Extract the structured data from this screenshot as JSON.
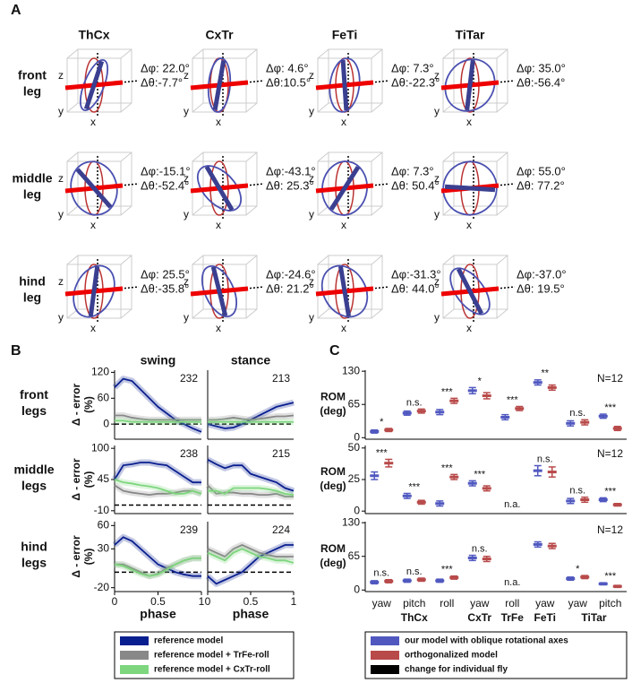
{
  "panel_letters": [
    "A",
    "B",
    "C"
  ],
  "panel_a": {
    "columns": [
      "ThCx",
      "CxTr",
      "FeTi",
      "TiTar"
    ],
    "rows": [
      [
        "front",
        "leg"
      ],
      [
        "middle",
        "leg"
      ],
      [
        "hind",
        "leg"
      ]
    ],
    "axis_labels": [
      "z",
      "y",
      "x"
    ],
    "cells": [
      [
        {
          "dphi": 22.0,
          "dphi_label": "Δφ: 22.0°",
          "dtheta": -7.7,
          "dtheta_label": "Δθ:-7.7°"
        },
        {
          "dphi": 4.6,
          "dphi_label": "Δφ: 4.6°",
          "dtheta": 10.5,
          "dtheta_label": "Δθ:10.5°"
        },
        {
          "dphi": 7.3,
          "dphi_label": "Δφ: 7.3°",
          "dtheta": -22.3,
          "dtheta_label": "Δθ:-22.3°"
        },
        {
          "dphi": 35.0,
          "dphi_label": "Δφ: 35.0°",
          "dtheta": -56.4,
          "dtheta_label": "Δθ:-56.4°"
        }
      ],
      [
        {
          "dphi": -15.1,
          "dphi_label": "Δφ:-15.1°",
          "dtheta": -52.4,
          "dtheta_label": "Δθ:-52.4°"
        },
        {
          "dphi": -43.1,
          "dphi_label": "Δφ:-43.1°",
          "dtheta": 25.3,
          "dtheta_label": "Δθ: 25.3°"
        },
        {
          "dphi": 7.3,
          "dphi_label": "Δφ: 7.3°",
          "dtheta": 50.4,
          "dtheta_label": "Δθ: 50.4°"
        },
        {
          "dphi": 55.0,
          "dphi_label": "Δφ: 55.0°",
          "dtheta": 77.2,
          "dtheta_label": "Δθ: 77.2°"
        }
      ],
      [
        {
          "dphi": 25.5,
          "dphi_label": "Δφ: 25.5°",
          "dtheta": -35.8,
          "dtheta_label": "Δθ:-35.8°"
        },
        {
          "dphi": -24.6,
          "dphi_label": "Δφ:-24.6°",
          "dtheta": 21.2,
          "dtheta_label": "Δθ: 21.2°"
        },
        {
          "dphi": -31.3,
          "dphi_label": "Δφ:-31.3°",
          "dtheta": 44.0,
          "dtheta_label": "Δθ: 44.0°"
        },
        {
          "dphi": -37.0,
          "dphi_label": "Δφ:-37.0°",
          "dtheta": 19.5,
          "dtheta_label": "Δθ: 19.5°"
        }
      ]
    ]
  },
  "chart_data": [
    {
      "type": "line",
      "title": "swing",
      "row_label": [
        "front",
        "legs"
      ],
      "y_label": [
        "Δ - error",
        "(%)"
      ],
      "annotation": "232",
      "x": [
        0,
        0.1,
        0.2,
        0.3,
        0.4,
        0.5,
        0.6,
        0.7,
        0.8,
        0.9,
        1
      ],
      "xlim": [
        0,
        1
      ],
      "ylim": [
        -35,
        125
      ],
      "yticks": [
        0,
        60,
        120
      ],
      "reference_line": 0,
      "series": [
        {
          "name": "reference model",
          "color": "#0a1f8f",
          "values": [
            85,
            105,
            100,
            80,
            60,
            40,
            25,
            10,
            0,
            -10,
            -18
          ]
        },
        {
          "name": "reference model + TrFe-roll",
          "color": "#888888",
          "values": [
            20,
            20,
            15,
            12,
            10,
            10,
            10,
            10,
            10,
            10,
            10
          ]
        },
        {
          "name": "reference model + CxTr-roll",
          "color": "#7ed67e",
          "values": [
            8,
            8,
            5,
            5,
            5,
            5,
            5,
            5,
            5,
            5,
            5
          ]
        }
      ]
    },
    {
      "type": "line",
      "title": "stance",
      "annotation": "213",
      "x": [
        0,
        0.1,
        0.2,
        0.3,
        0.4,
        0.5,
        0.6,
        0.7,
        0.8,
        0.9,
        1
      ],
      "xlim": [
        0,
        1
      ],
      "ylim": [
        -35,
        125
      ],
      "reference_line": 0,
      "series": [
        {
          "name": "reference model",
          "color": "#0a1f8f",
          "values": [
            0,
            -5,
            -10,
            -8,
            0,
            10,
            20,
            30,
            40,
            45,
            50
          ]
        },
        {
          "name": "reference model + TrFe-roll",
          "color": "#888888",
          "values": [
            10,
            10,
            12,
            15,
            12,
            10,
            12,
            15,
            18,
            18,
            20
          ]
        },
        {
          "name": "reference model + CxTr-roll",
          "color": "#7ed67e",
          "values": [
            5,
            5,
            5,
            5,
            5,
            5,
            5,
            5,
            5,
            5,
            5
          ]
        }
      ]
    },
    {
      "type": "line",
      "row_label": [
        "middle",
        "legs"
      ],
      "y_label": [
        "Δ - error",
        "(%)"
      ],
      "annotation": "238",
      "x": [
        0,
        0.1,
        0.2,
        0.3,
        0.4,
        0.5,
        0.6,
        0.7,
        0.8,
        0.9,
        1
      ],
      "xlim": [
        0,
        1
      ],
      "ylim": [
        -15,
        105
      ],
      "yticks": [
        -10,
        45,
        100
      ],
      "reference_line": 0,
      "series": [
        {
          "name": "reference model",
          "color": "#0a1f8f",
          "values": [
            45,
            70,
            72,
            75,
            75,
            72,
            70,
            60,
            50,
            40,
            40
          ]
        },
        {
          "name": "reference model + TrFe-roll",
          "color": "#888888",
          "values": [
            35,
            25,
            22,
            20,
            18,
            20,
            20,
            22,
            25,
            25,
            20
          ]
        },
        {
          "name": "reference model + CxTr-roll",
          "color": "#7ed67e",
          "values": [
            45,
            40,
            38,
            35,
            33,
            30,
            25,
            20,
            20,
            25,
            20
          ]
        }
      ]
    },
    {
      "type": "line",
      "annotation": "215",
      "x": [
        0,
        0.1,
        0.2,
        0.3,
        0.4,
        0.5,
        0.6,
        0.7,
        0.8,
        0.9,
        1
      ],
      "xlim": [
        0,
        1
      ],
      "ylim": [
        -15,
        105
      ],
      "reference_line": 0,
      "series": [
        {
          "name": "reference model",
          "color": "#0a1f8f",
          "values": [
            80,
            72,
            65,
            70,
            70,
            55,
            50,
            45,
            40,
            30,
            25
          ]
        },
        {
          "name": "reference model + TrFe-roll",
          "color": "#888888",
          "values": [
            35,
            20,
            22,
            22,
            20,
            20,
            18,
            18,
            20,
            15,
            15
          ]
        },
        {
          "name": "reference model + CxTr-roll",
          "color": "#7ed67e",
          "values": [
            25,
            25,
            20,
            30,
            30,
            30,
            30,
            28,
            25,
            20,
            18
          ]
        }
      ]
    },
    {
      "type": "line",
      "row_label": [
        "hind",
        "legs"
      ],
      "y_label": [
        "Δ - error",
        "(%)"
      ],
      "x_label": "phase",
      "annotation": "239",
      "x": [
        0,
        0.1,
        0.2,
        0.3,
        0.4,
        0.5,
        0.6,
        0.7,
        0.8,
        0.9,
        1
      ],
      "xlim": [
        0,
        1
      ],
      "xticks": [
        0,
        0.5,
        1
      ],
      "ylim": [
        -25,
        65
      ],
      "yticks": [
        -20,
        30,
        60
      ],
      "reference_line": 0,
      "series": [
        {
          "name": "reference model",
          "color": "#0a1f8f",
          "values": [
            35,
            45,
            40,
            30,
            20,
            10,
            5,
            0,
            -3,
            -5,
            -5
          ]
        },
        {
          "name": "reference model + TrFe-roll",
          "color": "#888888",
          "values": [
            10,
            10,
            5,
            0,
            -5,
            -2,
            5,
            10,
            15,
            18,
            18
          ]
        },
        {
          "name": "reference model + CxTr-roll",
          "color": "#7ed67e",
          "values": [
            10,
            8,
            3,
            -2,
            -5,
            -3,
            3,
            10,
            15,
            18,
            18
          ]
        }
      ]
    },
    {
      "type": "line",
      "x_label": "phase",
      "annotation": "224",
      "x": [
        0,
        0.1,
        0.2,
        0.3,
        0.4,
        0.5,
        0.6,
        0.7,
        0.8,
        0.9,
        1
      ],
      "xlim": [
        0,
        1
      ],
      "xticks": [
        0,
        0.5,
        1
      ],
      "ylim": [
        -25,
        65
      ],
      "reference_line": 0,
      "series": [
        {
          "name": "reference model",
          "color": "#0a1f8f",
          "values": [
            -5,
            -15,
            -10,
            -5,
            0,
            10,
            20,
            25,
            30,
            35,
            35
          ]
        },
        {
          "name": "reference model + TrFe-roll",
          "color": "#888888",
          "values": [
            30,
            25,
            20,
            30,
            35,
            30,
            25,
            22,
            20,
            20,
            20
          ]
        },
        {
          "name": "reference model + CxTr-roll",
          "color": "#7ed67e",
          "values": [
            25,
            20,
            15,
            25,
            30,
            25,
            20,
            18,
            15,
            15,
            12
          ]
        }
      ]
    },
    {
      "type": "errorbar",
      "y_label": [
        "ROM",
        "(deg)"
      ],
      "annotation": "N=12",
      "ylim": [
        -3,
        132
      ],
      "yticks": [
        0,
        65,
        130
      ],
      "significance": [
        "*",
        "n.s.",
        "***",
        "*",
        "***",
        "**",
        "n.s.",
        "***"
      ],
      "individual_label": "change for individual fly",
      "individual_color": "#000000",
      "series": [
        {
          "name": "our model with oblique rotational axes",
          "color": "#5058c0",
          "values": [
            12,
            48,
            50,
            92,
            40,
            108,
            28,
            42
          ],
          "errors": [
            3,
            4,
            5,
            6,
            5,
            5,
            5,
            4
          ]
        },
        {
          "name": "orthogonalized model",
          "color": "#b84a4a",
          "values": [
            15,
            52,
            72,
            82,
            57,
            98,
            30,
            18
          ],
          "errors": [
            3,
            4,
            5,
            6,
            4,
            5,
            5,
            4
          ]
        }
      ]
    },
    {
      "type": "errorbar",
      "y_label": [
        "ROM",
        "(deg)"
      ],
      "annotation": "N=12",
      "ylim": [
        -2,
        52
      ],
      "yticks": [
        0,
        25,
        50
      ],
      "significance": [
        "***",
        "***",
        "***",
        "***",
        "n.a.",
        "n.s.",
        "n.s.",
        "***"
      ],
      "series": [
        {
          "name": "our model with oblique rotational axes",
          "color": "#5058c0",
          "values": [
            28,
            12,
            6,
            22,
            null,
            32,
            8,
            9
          ],
          "errors": [
            3,
            2,
            2,
            2,
            null,
            4,
            2,
            1.5
          ]
        },
        {
          "name": "orthogonalized model",
          "color": "#b84a4a",
          "values": [
            38,
            7,
            27,
            18,
            null,
            31,
            9,
            5
          ],
          "errors": [
            3,
            1.5,
            2,
            2,
            null,
            4,
            2,
            1
          ]
        }
      ]
    },
    {
      "type": "errorbar",
      "y_label": [
        "ROM",
        "(deg)"
      ],
      "annotation": "N=12",
      "ylim": [
        -3,
        132
      ],
      "yticks": [
        0,
        65,
        130
      ],
      "categories": [
        "yaw",
        "pitch",
        "roll",
        "yaw",
        "roll",
        "yaw",
        "yaw",
        "pitch"
      ],
      "groups": [
        "ThCx",
        "CxTr",
        "TrFe",
        "FeTi",
        "TiTar"
      ],
      "significance": [
        "n.s.",
        "n.s.",
        "***",
        "n.s.",
        "n.a.",
        null,
        "*",
        "***"
      ],
      "series": [
        {
          "name": "our model with oblique rotational axes",
          "color": "#5058c0",
          "values": [
            15,
            18,
            18,
            62,
            null,
            88,
            22,
            12
          ],
          "errors": [
            3,
            3,
            3,
            5,
            null,
            5,
            3,
            2
          ]
        },
        {
          "name": "orthogonalized model",
          "color": "#b84a4a",
          "values": [
            17,
            20,
            24,
            60,
            null,
            85,
            25,
            7
          ],
          "errors": [
            3,
            3,
            3,
            5,
            null,
            5,
            3,
            2
          ]
        }
      ]
    }
  ]
}
